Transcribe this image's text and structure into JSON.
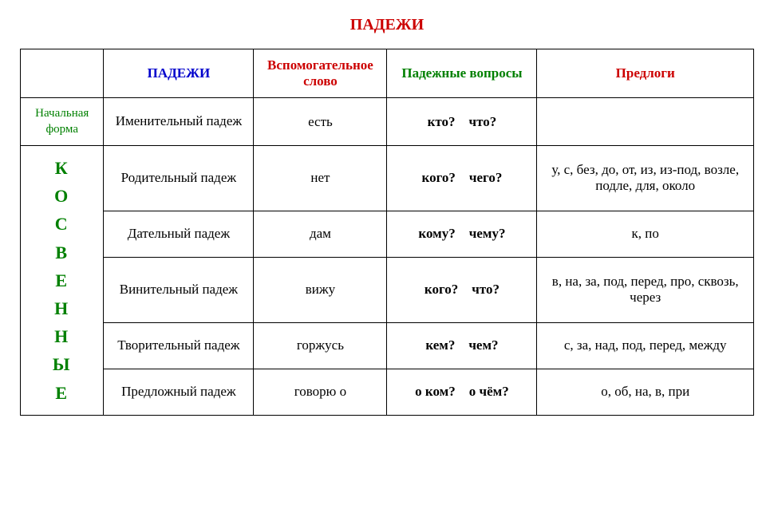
{
  "colors": {
    "red": "#cc0000",
    "blue": "#0000cc",
    "green": "#008000",
    "black": "#000000"
  },
  "title": "ПАДЕЖИ",
  "headers": {
    "col1": "ПАДЕЖИ",
    "col2": "Вспомогательное слово",
    "col3": "Падежные вопросы",
    "col4": "Предлоги"
  },
  "sideLabels": {
    "initial": "Начальная форма",
    "indirect": "КОСВЕННЫЕ"
  },
  "rows": [
    {
      "case": "Именительный падеж",
      "aux": "есть",
      "q1": "кто?",
      "q2": "что?",
      "prep": ""
    },
    {
      "case": "Родительный падеж",
      "aux": "нет",
      "q1": "кого?",
      "q2": "чего?",
      "prep": "у, с, без, до, от, из, из-под, возле, подле, для, около"
    },
    {
      "case": "Дательный падеж",
      "aux": "дам",
      "q1": "кому?",
      "q2": "чему?",
      "prep": "к, по"
    },
    {
      "case": "Винительный падеж",
      "aux": "вижу",
      "q1": "кого?",
      "q2": "что?",
      "prep": "в, на, за, под, перед, про, сквозь, через"
    },
    {
      "case": "Творительный падеж",
      "aux": "горжусь",
      "q1": "кем?",
      "q2": "чем?",
      "prep": "с, за, над, под, перед, между"
    },
    {
      "case": "Предложный падеж",
      "aux": "говорю о",
      "q1": "о ком?",
      "q2": "о чём?",
      "prep": "о, об, на, в, при"
    }
  ]
}
